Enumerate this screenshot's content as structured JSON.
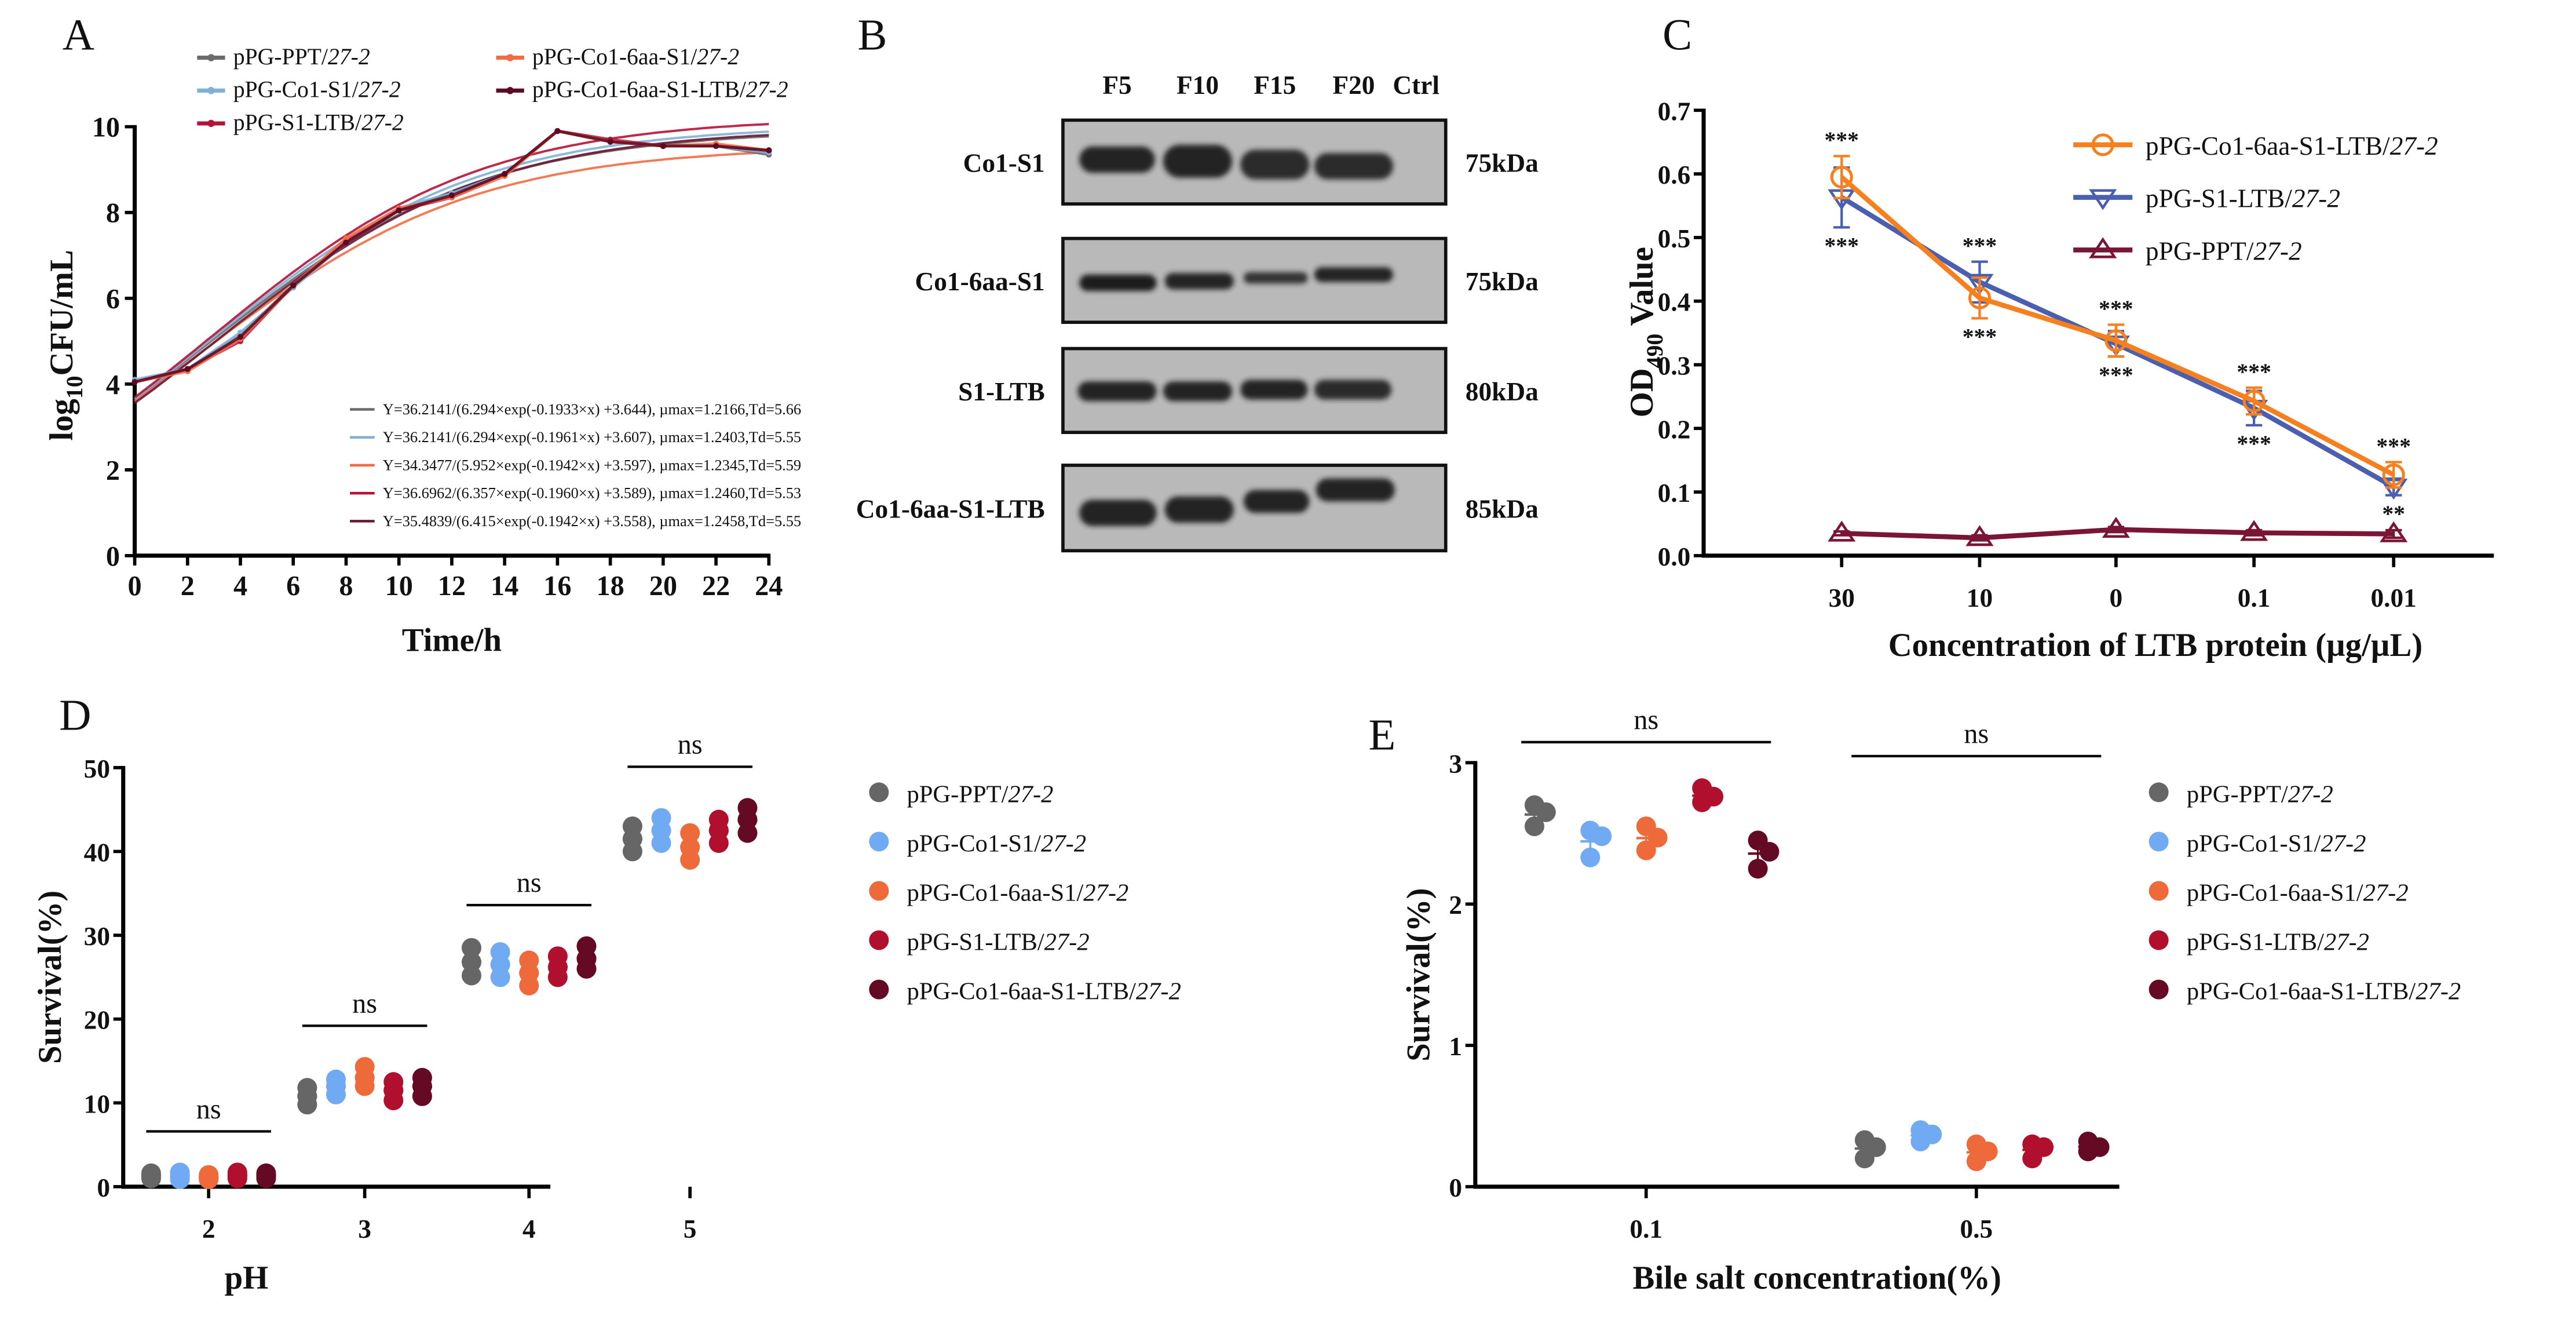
{
  "panel_labels": [
    "A",
    "B",
    "C",
    "D",
    "E"
  ],
  "western_blot": {
    "lanes": [
      "F5",
      "F10",
      "F15",
      "F20",
      "Ctrl"
    ],
    "rows": [
      {
        "label": "Co1-S1",
        "size": "75kDa"
      },
      {
        "label": "Co1-6aa-S1",
        "size": "75kDa"
      },
      {
        "label": "S1-LTB",
        "size": "80kDa"
      },
      {
        "label": "Co1-6aa-S1-LTB",
        "size": "85kDa"
      }
    ]
  },
  "chart_data": [
    {
      "type": "line",
      "panel": "A",
      "xlabel": "Time/h",
      "ylabel": {
        "base": "log",
        "sub": "10",
        "rest": "CFU/mL"
      },
      "xlim": [
        0,
        24
      ],
      "ylim": [
        0,
        10
      ],
      "xticks": [
        0,
        2,
        4,
        6,
        8,
        10,
        12,
        14,
        16,
        18,
        20,
        22,
        24
      ],
      "yticks": [
        0,
        2,
        4,
        6,
        8,
        10
      ],
      "x": [
        0,
        2,
        4,
        6,
        8,
        10,
        12,
        14,
        16,
        18,
        20,
        22,
        24
      ],
      "series": [
        {
          "name": "pPG-PPT/27-2",
          "color": "#6b6b6b",
          "values": [
            4.05,
            4.35,
            5.15,
            6.3,
            7.3,
            8.05,
            8.45,
            8.9,
            9.9,
            9.65,
            9.55,
            9.55,
            9.35
          ]
        },
        {
          "name": "pPG-Co1-S1/27-2",
          "color": "#7fb0d8",
          "values": [
            4.1,
            4.35,
            5.2,
            6.25,
            7.3,
            8.1,
            8.45,
            8.9,
            9.9,
            9.65,
            9.55,
            9.55,
            9.4
          ]
        },
        {
          "name": "pPG-S1-LTB/27-2",
          "color": "#b5123a",
          "values": [
            4.05,
            4.35,
            5.0,
            6.3,
            7.35,
            8.05,
            8.35,
            8.9,
            9.9,
            9.7,
            9.55,
            9.55,
            9.45
          ]
        },
        {
          "name": "pPG-Co1-6aa-S1/27-2",
          "color": "#f26b45",
          "values": [
            4.05,
            4.3,
            5.05,
            6.3,
            7.4,
            8.1,
            8.35,
            8.85,
            9.9,
            9.65,
            9.55,
            9.6,
            9.45
          ]
        },
        {
          "name": "pPG-Co1-6aa-S1-LTB/27-2",
          "color": "#5c0b22",
          "values": [
            4.05,
            4.35,
            5.1,
            6.3,
            7.3,
            8.05,
            8.4,
            8.9,
            9.9,
            9.65,
            9.55,
            9.55,
            9.45
          ]
        }
      ],
      "fits": [
        {
          "label": "Y=36.2141/(6.294×exp(-0.1933×x) +3.644), µmax=1.2166,Td=5.66",
          "color": "#6b6b6b",
          "a": 36.2141,
          "b": 6.294,
          "k": 0.1933,
          "c": 3.644
        },
        {
          "label": "Y=36.2141/(6.294×exp(-0.1961×x) +3.607), µmax=1.2403,Td=5.55",
          "color": "#7fb0d8",
          "a": 36.2141,
          "b": 6.294,
          "k": 0.1961,
          "c": 3.607
        },
        {
          "label": "Y=34.3477/(5.952×exp(-0.1942×x) +3.597), µmax=1.2345,Td=5.59",
          "color": "#f26b45",
          "a": 34.3477,
          "b": 5.952,
          "k": 0.1942,
          "c": 3.597
        },
        {
          "label": "Y=36.6962/(6.357×exp(-0.1960×x) +3.589), µmax=1.2460,Td=5.53",
          "color": "#b5123a",
          "a": 36.6962,
          "b": 6.357,
          "k": 0.196,
          "c": 3.589
        },
        {
          "label": "Y=35.4839/(6.415×exp(-0.1942×x) +3.558), µmax=1.2458,Td=5.55",
          "color": "#6b1a35",
          "a": 35.4839,
          "b": 6.415,
          "k": 0.1942,
          "c": 3.558
        }
      ]
    },
    {
      "type": "line",
      "panel": "C",
      "xlabel": "Concentration of LTB  protein (µg/µL)",
      "ylabel": {
        "base": "OD",
        "sub": "490",
        "rest": " Value"
      },
      "categories": [
        "30",
        "10",
        "0",
        "0.1",
        "0.01"
      ],
      "ylim": [
        0,
        0.7
      ],
      "yticks": [
        "0.0",
        "0.1",
        "0.2",
        "0.3",
        "0.4",
        "0.5",
        "0.6",
        "0.7"
      ],
      "series": [
        {
          "name": "pPG-Co1-6aa-S1-LTB/27-2",
          "color": "#f7801e",
          "marker": "circle",
          "values": [
            0.595,
            0.405,
            0.338,
            0.243,
            0.127
          ],
          "errors": [
            0.033,
            0.032,
            0.025,
            0.021,
            0.02
          ]
        },
        {
          "name": "pPG-S1-LTB/27-2",
          "color": "#4a5fb0",
          "marker": "triangle-down",
          "values": [
            0.563,
            0.43,
            0.333,
            0.232,
            0.108
          ],
          "errors": [
            0.047,
            0.032,
            0.02,
            0.027,
            0.013
          ]
        },
        {
          "name": "pPG-PPT/27-2",
          "color": "#7a1535",
          "marker": "triangle-up",
          "values": [
            0.035,
            0.028,
            0.041,
            0.036,
            0.034
          ],
          "errors": [
            0.003,
            0.004,
            0.004,
            0.004,
            0.006
          ]
        }
      ],
      "annotations_above": [
        "***",
        "***",
        "***",
        "***",
        "***"
      ],
      "annotations_below": [
        "***",
        "***",
        "***",
        "***",
        "**"
      ]
    },
    {
      "type": "scatter",
      "panel": "D",
      "xlabel": "pH",
      "ylabel": "Survival(%)",
      "categories": [
        "2",
        "3",
        "4",
        "5"
      ],
      "ylim": [
        0,
        50
      ],
      "yticks": [
        0,
        10,
        20,
        30,
        40,
        50
      ],
      "significance": [
        "ns",
        "ns",
        "ns",
        "ns"
      ],
      "series": [
        {
          "name": "pPG-PPT/27-2",
          "color": "#666666",
          "values": [
            [
              1.0,
              1.3,
              1.6
            ],
            [
              9.8,
              10.8,
              11.8
            ],
            [
              25.2,
              26.8,
              28.5
            ],
            [
              40.0,
              41.5,
              43.0
            ]
          ]
        },
        {
          "name": "pPG-Co1-S1/27-2",
          "color": "#6faaf2",
          "values": [
            [
              0.9,
              1.3,
              1.7
            ],
            [
              11.0,
              12.0,
              12.8
            ],
            [
              25.0,
              26.5,
              28.0
            ],
            [
              41.0,
              42.5,
              44.0
            ]
          ]
        },
        {
          "name": "pPG-Co1-6aa-S1/27-2",
          "color": "#ee6a3a",
          "values": [
            [
              0.9,
              1.1,
              1.4
            ],
            [
              12.0,
              13.0,
              14.3
            ],
            [
              24.0,
              25.5,
              27.0
            ],
            [
              39.0,
              40.5,
              42.2
            ]
          ]
        },
        {
          "name": "pPG-S1-LTB/27-2",
          "color": "#b0102e",
          "values": [
            [
              1.0,
              1.3,
              1.7
            ],
            [
              10.3,
              11.5,
              12.5
            ],
            [
              25.0,
              26.2,
              27.5
            ],
            [
              41.0,
              42.5,
              43.8
            ]
          ]
        },
        {
          "name": "pPG-Co1-6aa-S1-LTB/27-2",
          "color": "#650a24",
          "values": [
            [
              1.0,
              1.3,
              1.6
            ],
            [
              10.8,
              12.0,
              13.0
            ],
            [
              26.0,
              27.2,
              28.7
            ],
            [
              42.2,
              43.8,
              45.2
            ]
          ]
        }
      ]
    },
    {
      "type": "scatter",
      "panel": "E",
      "xlabel": "Bile salt concentration(%)",
      "ylabel": "Survival(%)",
      "categories": [
        "0.1",
        "0.5"
      ],
      "ylim": [
        0,
        3
      ],
      "yticks": [
        0,
        1,
        2,
        3
      ],
      "significance": [
        "ns",
        "ns"
      ],
      "series": [
        {
          "name": "pPG-PPT/27-2",
          "color": "#666666",
          "values": [
            [
              2.55,
              2.65,
              2.7
            ],
            [
              0.2,
              0.28,
              0.33
            ]
          ]
        },
        {
          "name": "pPG-Co1-S1/27-2",
          "color": "#6faaf2",
          "values": [
            [
              2.33,
              2.48,
              2.52
            ],
            [
              0.32,
              0.37,
              0.4
            ]
          ]
        },
        {
          "name": "pPG-Co1-6aa-S1/27-2",
          "color": "#ee6a3a",
          "values": [
            [
              2.38,
              2.47,
              2.55
            ],
            [
              0.18,
              0.25,
              0.3
            ]
          ]
        },
        {
          "name": "pPG-S1-LTB/27-2",
          "color": "#b0102e",
          "values": [
            [
              2.72,
              2.76,
              2.82
            ],
            [
              0.2,
              0.28,
              0.3
            ]
          ]
        },
        {
          "name": "pPG-Co1-6aa-S1-LTB/27-2",
          "color": "#650a24",
          "values": [
            [
              2.25,
              2.37,
              2.45
            ],
            [
              0.25,
              0.28,
              0.32
            ]
          ]
        }
      ]
    }
  ]
}
